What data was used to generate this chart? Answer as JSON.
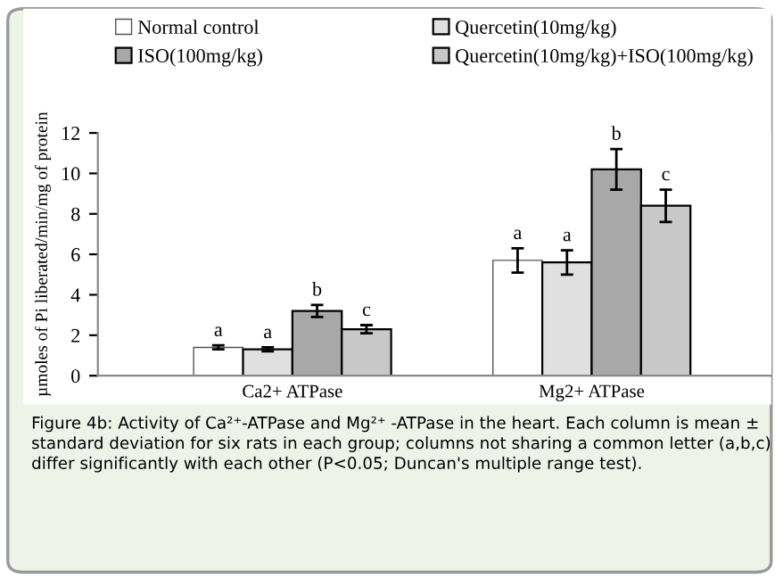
{
  "chart_data": {
    "type": "bar",
    "categories": [
      "Ca2+ ATPase",
      "Mg2+ ATPase"
    ],
    "ylabel": "µmoles of Pi liberated/min/mg of protein",
    "ylim": [
      0,
      12
    ],
    "yticks": [
      0,
      2,
      4,
      6,
      8,
      10,
      12
    ],
    "grid": false,
    "legend": "top",
    "series": [
      {
        "name": "Normal control",
        "color": "#ffffff",
        "values": [
          1.4,
          5.7
        ],
        "errors": [
          0.1,
          0.6
        ],
        "value_labels": [
          "a",
          "a"
        ]
      },
      {
        "name": "Quercetin(10mg/kg)",
        "color": "#e0e0e0",
        "values": [
          1.3,
          5.6
        ],
        "errors": [
          0.1,
          0.6
        ],
        "value_labels": [
          "a",
          "a"
        ]
      },
      {
        "name": "ISO(100mg/kg)",
        "color": "#a8a8a8",
        "values": [
          3.2,
          10.2
        ],
        "errors": [
          0.3,
          1.0
        ],
        "value_labels": [
          "b",
          "b"
        ]
      },
      {
        "name": "Quercetin(10mg/kg)+ISO(100mg/kg)",
        "color": "#c8c8c8",
        "values": [
          2.3,
          8.4
        ],
        "errors": [
          0.2,
          0.8
        ],
        "value_labels": [
          "c",
          "c"
        ]
      }
    ],
    "annotations": [
      "Figure 4b: Activity of Ca²⁺-ATPase and Mg²⁺ -ATPase in the heart. Each column is mean ± standard deviation for six rats in each group; columns not sharing a common letter (a,b,c) differ significantly with each other (P<0.05; Duncan's multiple range test)."
    ]
  }
}
